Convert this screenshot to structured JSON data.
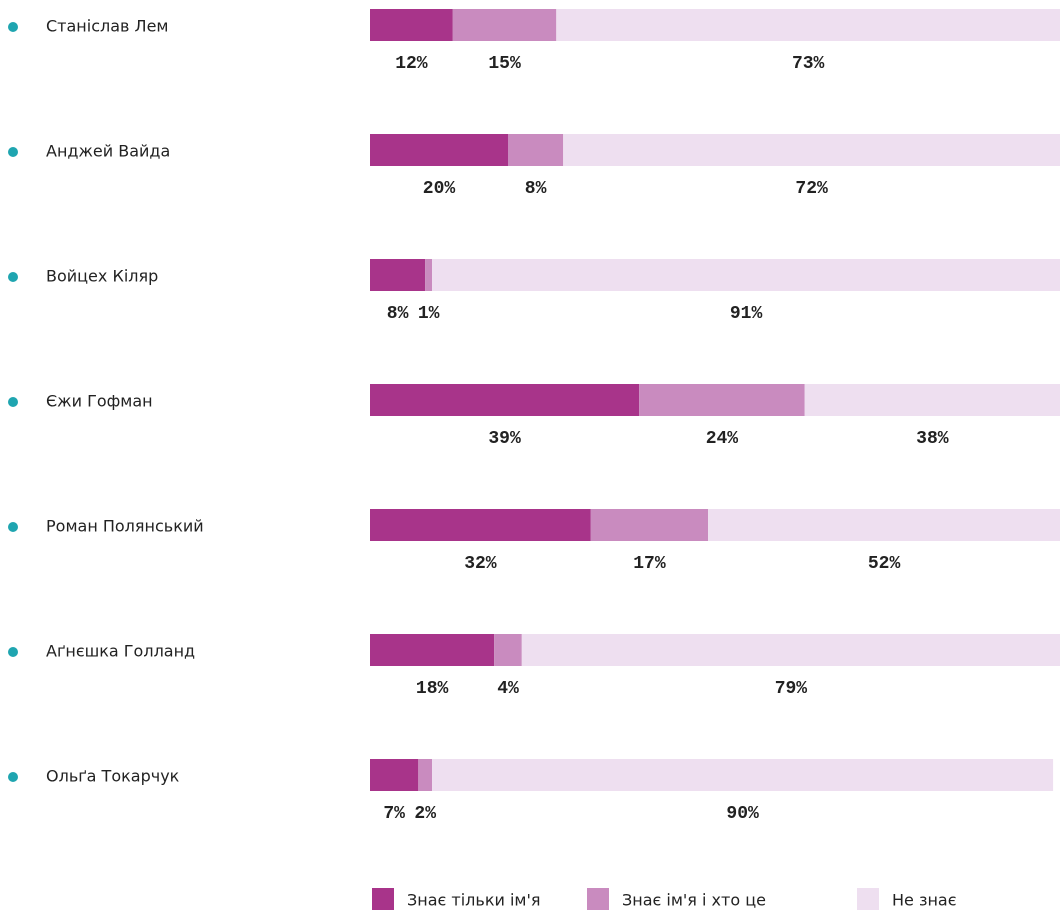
{
  "chart_data": {
    "type": "stacked-bar-horizontal",
    "categories": [
      "Станіслав Лем",
      "Анджей Вайда",
      "Войцех Кіляр",
      "Єжи Гофман",
      "Роман Полянський",
      "Аґнєшка Голланд",
      "Ольґа Токарчук"
    ],
    "series": [
      {
        "name": "Знає тільки ім'я",
        "color": "#a8348a",
        "values": [
          12,
          20,
          8,
          39,
          32,
          18,
          7
        ],
        "value_labels": [
          "12%",
          "20%",
          "8%",
          "39%",
          "32%",
          "18%",
          "7%"
        ]
      },
      {
        "name": "Знає ім'я і хто це",
        "color": "#c98bbf",
        "values": [
          15,
          8,
          1,
          24,
          17,
          4,
          2
        ],
        "value_labels": [
          "15%",
          "8%",
          "1%",
          "24%",
          "17%",
          "4%",
          "2%"
        ]
      },
      {
        "name": "Не знає",
        "color": "#eedff0",
        "values": [
          73,
          72,
          91,
          38,
          52,
          79,
          90
        ],
        "value_labels": [
          "73%",
          "72%",
          "91%",
          "38%",
          "52%",
          "79%",
          "90%"
        ]
      }
    ],
    "xlim": [
      0,
      100
    ],
    "bullet_color": "#1fa5b0"
  }
}
